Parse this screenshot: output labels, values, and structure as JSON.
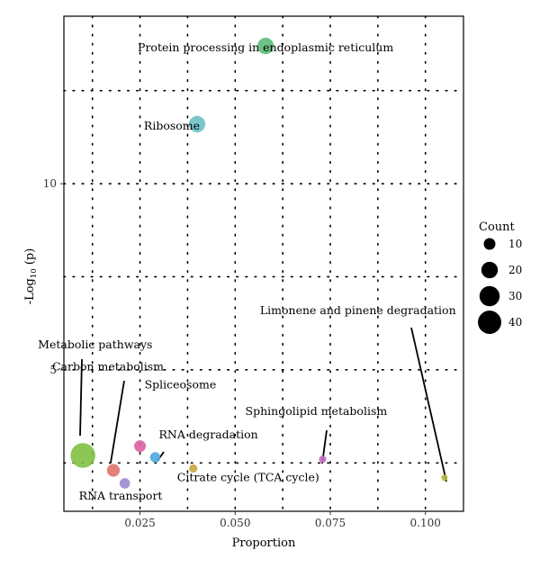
{
  "chart_data": {
    "type": "scatter",
    "xlabel": "Proportion",
    "ylabel": "-Log",
    "ylabel_subscript": "10",
    "ylabel_suffix": " (p)",
    "xlim": [
      0.005,
      0.11
    ],
    "ylim": [
      1.2,
      14.5
    ],
    "xticks": [
      0.025,
      0.05,
      0.075,
      0.1
    ],
    "xtick_labels": [
      "0.025",
      "0.050",
      "0.075",
      "0.100"
    ],
    "yticks": [
      5,
      10
    ],
    "ytick_labels": [
      "5",
      "10"
    ],
    "grid": true,
    "points": [
      {
        "label": "Protein processing in endoplasmic reticulum",
        "x": 0.058,
        "y": 13.7,
        "count": 20,
        "color": "#5dbb78"
      },
      {
        "label": "Ribosome",
        "x": 0.04,
        "y": 11.6,
        "count": 20,
        "color": "#6cc0c8"
      },
      {
        "label": "Metabolic pathways",
        "x": 0.01,
        "y": 2.7,
        "count": 45,
        "color": "#80c041"
      },
      {
        "label": "Carbon metabolism",
        "x": 0.018,
        "y": 2.3,
        "count": 12,
        "color": "#e0736a"
      },
      {
        "label": "Spliceosome",
        "x": 0.025,
        "y": 2.95,
        "count": 10,
        "color": "#d95fa4"
      },
      {
        "label": "RNA degradation",
        "x": 0.029,
        "y": 2.65,
        "count": 8,
        "color": "#4ea8dd"
      },
      {
        "label": "RNA transport",
        "x": 0.021,
        "y": 1.95,
        "count": 8,
        "color": "#9b8ccd"
      },
      {
        "label": "Citrate cycle (TCA cycle)",
        "x": 0.039,
        "y": 2.35,
        "count": 5,
        "color": "#c9a43b"
      },
      {
        "label": "Sphingolipid metabolism",
        "x": 0.073,
        "y": 2.6,
        "count": 4,
        "color": "#c76cc2"
      },
      {
        "label": "Limonene and pinene degradation",
        "x": 0.105,
        "y": 2.1,
        "count": 3,
        "color": "#b0b642"
      }
    ],
    "legend": {
      "title": "Count",
      "position": "right",
      "entries": [
        {
          "label": "10",
          "value": 10
        },
        {
          "label": "20",
          "value": 20
        },
        {
          "label": "30",
          "value": 30
        },
        {
          "label": "40",
          "value": 40
        }
      ]
    }
  }
}
